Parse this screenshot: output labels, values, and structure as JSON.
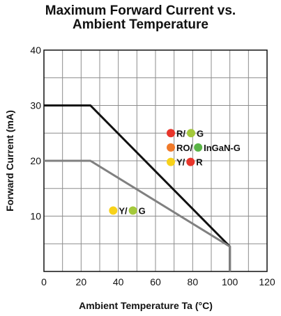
{
  "chart_data": {
    "type": "line",
    "title_lines": [
      "Maximum Forward Current vs.",
      "Ambient Temperature"
    ],
    "xlabel": "Ambient Temperature Ta (°C)",
    "ylabel": "Forward Current (mA)",
    "xlim": [
      0,
      120
    ],
    "ylim": [
      0,
      40
    ],
    "xticks": [
      0,
      20,
      40,
      60,
      80,
      100,
      120
    ],
    "yticks": [
      10,
      20,
      30,
      40
    ],
    "grid": true,
    "series": [
      {
        "color": "#111111",
        "x": [
          0,
          25,
          100,
          100
        ],
        "y": [
          30,
          30,
          4.5,
          0
        ]
      },
      {
        "color": "#808080",
        "x": [
          0,
          25,
          100,
          100
        ],
        "y": [
          20,
          20,
          4.5,
          0
        ]
      }
    ],
    "annotations": [
      {
        "x": 66,
        "y": 25.0,
        "text": "",
        "dots": [
          {
            "label": "R",
            "color": "#e8352b"
          },
          {
            "label": "G",
            "color": "#a4c93b"
          }
        ]
      },
      {
        "x": 66,
        "y": 22.4,
        "text": "",
        "dots": [
          {
            "label": "RO",
            "color": "#f07a2a"
          },
          {
            "label": "InGaN-G",
            "color": "#5bb547"
          }
        ]
      },
      {
        "x": 66,
        "y": 19.8,
        "text": "",
        "dots": [
          {
            "label": "Y",
            "color": "#f7d21a"
          },
          {
            "label": "R",
            "color": "#e8352b"
          }
        ]
      },
      {
        "x": 35,
        "y": 11.0,
        "text": "",
        "dots": [
          {
            "label": "Y",
            "color": "#f7d21a"
          },
          {
            "label": "G",
            "color": "#a4c93b"
          }
        ]
      }
    ]
  }
}
